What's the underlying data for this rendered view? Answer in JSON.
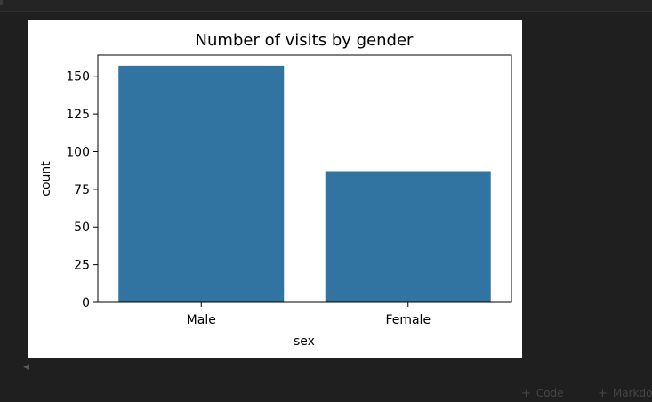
{
  "notebook": {
    "add_code_label": "Code",
    "add_markdown_label": "Markdown"
  },
  "chart_data": {
    "type": "bar",
    "title": "Number of visits by gender",
    "xlabel": "sex",
    "ylabel": "count",
    "categories": [
      "Male",
      "Female"
    ],
    "values": [
      157,
      87
    ],
    "ylim": [
      0,
      164
    ],
    "yticks": [
      0,
      25,
      50,
      75,
      100,
      125,
      150
    ],
    "bar_color": "#3274a1",
    "grid": false
  }
}
